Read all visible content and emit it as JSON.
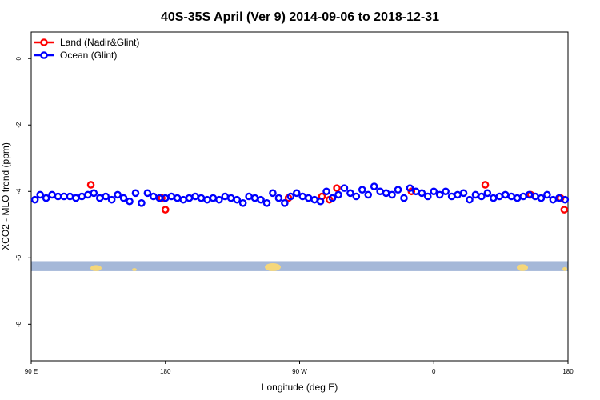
{
  "chart_data": {
    "type": "scatter",
    "title": "40S-35S April (Ver 9)   2014-09-06 to 2018-12-31",
    "xlabel": "Longitude (deg E)",
    "ylabel": "XCO2 - MLO trend (ppm)",
    "xlim": [
      90,
      450
    ],
    "ylim": [
      -9.1,
      0.8
    ],
    "x_ticks": [
      {
        "value": 90,
        "label": "90 E"
      },
      {
        "value": 180,
        "label": "180"
      },
      {
        "value": 270,
        "label": "90 W"
      },
      {
        "value": 360,
        "label": "0"
      },
      {
        "value": 450,
        "label": "180"
      }
    ],
    "y_ticks": [
      {
        "value": 0,
        "label": "0"
      },
      {
        "value": -2,
        "label": "-2"
      },
      {
        "value": -4,
        "label": "-4"
      },
      {
        "value": -6,
        "label": "-6"
      },
      {
        "value": -8,
        "label": "-8"
      }
    ],
    "grid": false,
    "legend_position": "top-left",
    "map_strip": {
      "y_top": -6.1,
      "y_bottom": -6.4,
      "ocean_color": "#a5b8d8",
      "land_color": "#f5d77a"
    },
    "series": [
      {
        "name": "Land (Nadir&Glint)",
        "color": "#ff0000",
        "x": [
          130,
          177.5,
          180,
          262.5,
          285,
          290,
          295,
          345,
          394.5,
          425,
          445,
          447.5
        ],
        "y": [
          -3.8,
          -4.2,
          -4.55,
          -4.2,
          -4.15,
          -4.25,
          -3.9,
          -4.0,
          -3.8,
          -4.1,
          -4.2,
          -4.55
        ]
      },
      {
        "name": "Ocean (Glint)",
        "color": "#0000ff",
        "x": [
          92.5,
          96,
          100,
          104,
          108,
          112,
          116,
          120,
          124,
          128,
          132,
          136,
          140,
          144,
          148,
          152,
          156,
          160,
          164,
          168,
          172,
          176,
          180,
          184,
          188,
          192,
          196,
          200,
          204,
          208,
          212,
          216,
          220,
          224,
          228,
          232,
          236,
          240,
          244,
          248,
          252,
          256,
          260,
          264,
          268,
          272,
          276,
          280,
          284,
          288,
          292,
          296,
          300,
          304,
          308,
          312,
          316,
          320,
          324,
          328,
          332,
          336,
          340,
          344,
          348,
          352,
          356,
          360,
          364,
          368,
          372,
          376,
          380,
          384,
          388,
          392,
          396,
          400,
          404,
          408,
          412,
          416,
          420,
          424,
          428,
          432,
          436,
          440,
          444,
          448
        ],
        "y": [
          -4.25,
          -4.1,
          -4.2,
          -4.1,
          -4.15,
          -4.15,
          -4.15,
          -4.2,
          -4.15,
          -4.1,
          -4.05,
          -4.2,
          -4.15,
          -4.25,
          -4.1,
          -4.2,
          -4.3,
          -4.05,
          -4.35,
          -4.05,
          -4.15,
          -4.2,
          -4.2,
          -4.15,
          -4.2,
          -4.25,
          -4.2,
          -4.15,
          -4.2,
          -4.25,
          -4.2,
          -4.25,
          -4.15,
          -4.2,
          -4.25,
          -4.35,
          -4.15,
          -4.2,
          -4.25,
          -4.35,
          -4.05,
          -4.2,
          -4.35,
          -4.15,
          -4.05,
          -4.15,
          -4.2,
          -4.25,
          -4.3,
          -4.0,
          -4.2,
          -4.1,
          -3.9,
          -4.05,
          -4.15,
          -3.95,
          -4.1,
          -3.85,
          -4.0,
          -4.05,
          -4.1,
          -3.95,
          -4.2,
          -3.9,
          -4.0,
          -4.05,
          -4.15,
          -4.0,
          -4.1,
          -4.0,
          -4.15,
          -4.1,
          -4.05,
          -4.25,
          -4.1,
          -4.15,
          -4.05,
          -4.2,
          -4.15,
          -4.1,
          -4.15,
          -4.2,
          -4.15,
          -4.1,
          -4.15,
          -4.2,
          -4.1,
          -4.25,
          -4.2,
          -4.25
        ]
      }
    ]
  }
}
